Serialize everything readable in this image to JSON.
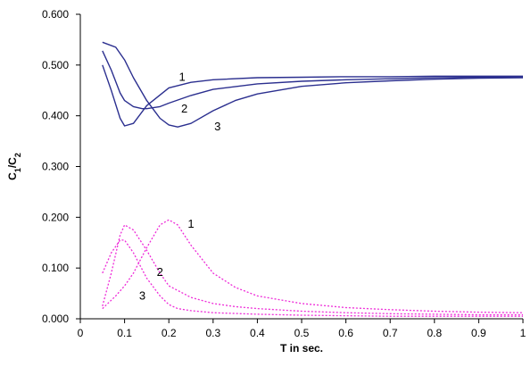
{
  "chart_data": {
    "type": "line",
    "title": "",
    "xlabel": "T in sec.",
    "ylabel": {
      "main": "C",
      "sub1": "1",
      "slash": "/C",
      "sub2": "2"
    },
    "xlim": [
      0,
      1
    ],
    "ylim": [
      0,
      0.6
    ],
    "x_ticks": [
      "0",
      "0.1",
      "0.2",
      "0.3",
      "0.4",
      "0.5",
      "0.6",
      "0.7",
      "0.8",
      "0.9",
      "1"
    ],
    "y_ticks": [
      "0.000",
      "0.100",
      "0.200",
      "0.300",
      "0.400",
      "0.500",
      "0.600"
    ],
    "grid": false,
    "legend": "none",
    "colors": {
      "solid": "#2b2f8f",
      "dotted": "#ee2ad8",
      "axis": "#000000"
    },
    "series": [
      {
        "name": "1",
        "style": "solid",
        "x": [
          0.05,
          0.07,
          0.09,
          0.1,
          0.12,
          0.15,
          0.2,
          0.25,
          0.3,
          0.4,
          0.5,
          0.6,
          0.7,
          0.8,
          0.9,
          1.0
        ],
        "y": [
          0.5,
          0.45,
          0.395,
          0.38,
          0.385,
          0.42,
          0.455,
          0.466,
          0.471,
          0.475,
          0.476,
          0.477,
          0.477,
          0.478,
          0.478,
          0.478
        ]
      },
      {
        "name": "2",
        "style": "solid",
        "x": [
          0.05,
          0.07,
          0.09,
          0.1,
          0.12,
          0.14,
          0.15,
          0.18,
          0.2,
          0.25,
          0.3,
          0.4,
          0.5,
          0.6,
          0.7,
          0.8,
          0.9,
          1.0
        ],
        "y": [
          0.528,
          0.49,
          0.445,
          0.43,
          0.418,
          0.414,
          0.414,
          0.418,
          0.425,
          0.44,
          0.452,
          0.463,
          0.468,
          0.471,
          0.473,
          0.475,
          0.476,
          0.477
        ]
      },
      {
        "name": "3",
        "style": "solid",
        "x": [
          0.05,
          0.08,
          0.1,
          0.12,
          0.15,
          0.18,
          0.2,
          0.22,
          0.25,
          0.3,
          0.35,
          0.4,
          0.5,
          0.6,
          0.7,
          0.8,
          0.9,
          1.0
        ],
        "y": [
          0.545,
          0.535,
          0.51,
          0.475,
          0.43,
          0.395,
          0.382,
          0.378,
          0.385,
          0.41,
          0.43,
          0.443,
          0.458,
          0.465,
          0.469,
          0.472,
          0.474,
          0.475
        ]
      },
      {
        "name": "1",
        "style": "dotted",
        "x": [
          0.05,
          0.08,
          0.1,
          0.12,
          0.15,
          0.18,
          0.2,
          0.22,
          0.25,
          0.3,
          0.35,
          0.4,
          0.5,
          0.6,
          0.7,
          0.8,
          0.9,
          1.0
        ],
        "y": [
          0.02,
          0.045,
          0.065,
          0.09,
          0.14,
          0.185,
          0.195,
          0.185,
          0.145,
          0.09,
          0.062,
          0.045,
          0.03,
          0.022,
          0.018,
          0.015,
          0.013,
          0.012
        ]
      },
      {
        "name": "2",
        "style": "dotted",
        "x": [
          0.05,
          0.07,
          0.09,
          0.1,
          0.12,
          0.15,
          0.18,
          0.2,
          0.25,
          0.3,
          0.35,
          0.4,
          0.5,
          0.6,
          0.7,
          0.8,
          0.9,
          1.0
        ],
        "y": [
          0.025,
          0.09,
          0.165,
          0.185,
          0.175,
          0.135,
          0.09,
          0.065,
          0.042,
          0.03,
          0.024,
          0.02,
          0.015,
          0.012,
          0.01,
          0.009,
          0.008,
          0.008
        ]
      },
      {
        "name": "3",
        "style": "dotted",
        "x": [
          0.05,
          0.07,
          0.09,
          0.1,
          0.12,
          0.15,
          0.18,
          0.2,
          0.22,
          0.25,
          0.3,
          0.4,
          0.5,
          0.6,
          0.7,
          0.8,
          0.9,
          1.0
        ],
        "y": [
          0.09,
          0.13,
          0.155,
          0.155,
          0.13,
          0.08,
          0.045,
          0.028,
          0.02,
          0.016,
          0.012,
          0.009,
          0.007,
          0.006,
          0.005,
          0.005,
          0.005,
          0.005
        ]
      }
    ],
    "annotations": [
      {
        "text": "1",
        "x": 0.23,
        "y": 0.478
      },
      {
        "text": "2",
        "x": 0.235,
        "y": 0.415
      },
      {
        "text": "3",
        "x": 0.31,
        "y": 0.38
      },
      {
        "text": "1",
        "x": 0.25,
        "y": 0.188
      },
      {
        "text": "2",
        "x": 0.18,
        "y": 0.093
      },
      {
        "text": "3",
        "x": 0.14,
        "y": 0.047
      }
    ]
  }
}
